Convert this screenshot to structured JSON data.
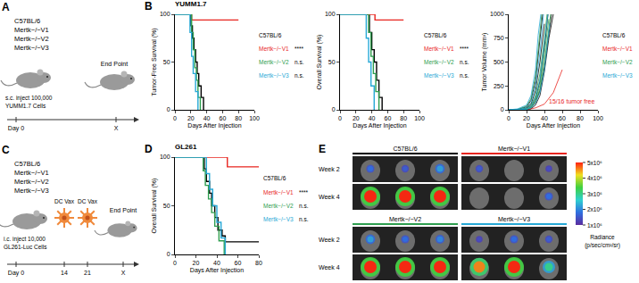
{
  "panel_labels": [
    "A",
    "B",
    "C",
    "D",
    "E"
  ],
  "schematic_A": {
    "genotypes": [
      "C57BL/6",
      "Mertk−/−V1",
      "Mertk−/−V2",
      "Mertk−/−V3"
    ],
    "injection": [
      "s.c. inject 100,000",
      "YUMM1.7 Cells"
    ],
    "end": "End Point",
    "timeline": [
      "Day 0",
      "X"
    ]
  },
  "schematic_C": {
    "genotypes": [
      "C57BL/6",
      "Mertk−/−V1",
      "Mertk−/−V2",
      "Mertk−/−V3"
    ],
    "injection": [
      "i.c. inject 10,000",
      "GL261-Luc Cells"
    ],
    "vaccines": [
      "DC Vax",
      "DC Vax"
    ],
    "end": "End Point",
    "timeline": [
      "Day 0",
      "14",
      "21",
      "X"
    ]
  },
  "chart_data": [
    {
      "type": "line",
      "title": "YUMM1.7",
      "xlabel": "Days After Injection",
      "ylabel": "Tumor-Free Survival (%)",
      "xlim": [
        0,
        100
      ],
      "xticks": [
        0,
        20,
        40,
        60,
        80,
        100
      ],
      "ylim": [
        0,
        100
      ],
      "yticks": [
        0,
        50,
        100
      ],
      "grid": false,
      "line_style": "step",
      "legend": "right",
      "series": [
        {
          "name": "C57BL/6",
          "color": "#000000",
          "x": [
            0,
            18,
            20,
            22,
            24,
            26,
            28,
            30,
            33,
            36
          ],
          "values": [
            100,
            100,
            88,
            75,
            63,
            50,
            38,
            25,
            13,
            0
          ]
        },
        {
          "name": "Mertk−/−V1",
          "color": "#e8251f",
          "x": [
            0,
            21,
            80
          ],
          "values": [
            100,
            94,
            94
          ]
        },
        {
          "name": "Mertk−/−V2",
          "color": "#2e9e4f",
          "x": [
            0,
            19,
            21,
            23,
            25,
            27,
            29,
            32
          ],
          "values": [
            100,
            100,
            81,
            63,
            44,
            31,
            13,
            0
          ]
        },
        {
          "name": "Mertk−/−V3",
          "color": "#27a9d6",
          "x": [
            0,
            17,
            19,
            21,
            23,
            26,
            29
          ],
          "values": [
            100,
            100,
            81,
            56,
            38,
            19,
            0
          ]
        }
      ],
      "annotations": [
        {
          "text": "****",
          "series": "Mertk−/−V1"
        },
        {
          "text": "n.s.",
          "series": "Mertk−/−V2"
        },
        {
          "text": "n.s.",
          "series": "Mertk−/−V3"
        }
      ]
    },
    {
      "type": "line",
      "xlabel": "Days After Injection",
      "ylabel": "Overall Survival (%)",
      "xlim": [
        0,
        100
      ],
      "xticks": [
        0,
        20,
        40,
        60,
        80,
        100
      ],
      "ylim": [
        0,
        100
      ],
      "yticks": [
        0,
        50,
        100
      ],
      "grid": false,
      "line_style": "step",
      "legend": "right",
      "series": [
        {
          "name": "C57BL/6",
          "color": "#000000",
          "x": [
            0,
            34,
            37,
            40,
            43,
            46,
            49,
            53
          ],
          "values": [
            100,
            100,
            81,
            63,
            50,
            31,
            13,
            0
          ]
        },
        {
          "name": "Mertk−/−V1",
          "color": "#e8251f",
          "x": [
            0,
            44,
            80
          ],
          "values": [
            100,
            94,
            94
          ]
        },
        {
          "name": "Mertk−/−V2",
          "color": "#2e9e4f",
          "x": [
            0,
            32,
            36,
            39,
            42,
            45,
            49
          ],
          "values": [
            100,
            100,
            81,
            56,
            38,
            19,
            0
          ]
        },
        {
          "name": "Mertk−/−V3",
          "color": "#27a9d6",
          "x": [
            0,
            30,
            33,
            36,
            39,
            43
          ],
          "values": [
            100,
            100,
            75,
            50,
            25,
            0
          ]
        }
      ],
      "annotations": [
        {
          "text": "****",
          "series": "Mertk−/−V1"
        },
        {
          "text": "n.s.",
          "series": "Mertk−/−V2"
        },
        {
          "text": "n.s.",
          "series": "Mertk−/−V3"
        }
      ]
    },
    {
      "type": "line",
      "xlabel": "Days After Injection",
      "ylabel": "Tumor Volume (mm³)",
      "xlim": [
        0,
        100
      ],
      "xticks": [
        0,
        20,
        40,
        60,
        80,
        100
      ],
      "ylim": [
        0,
        1000
      ],
      "yticks": [
        0,
        250,
        500,
        750,
        1000
      ],
      "grid": false,
      "line_style": "solid",
      "legend": "right",
      "series": [
        {
          "name": "C57BL/6",
          "color": "#000000",
          "curves": [
            {
              "x": [
                0,
                10,
                20,
                25,
                30,
                35,
                40,
                44
              ],
              "values": [
                0,
                0,
                10,
                40,
                120,
                300,
                650,
                1000
              ]
            },
            {
              "x": [
                0,
                10,
                20,
                25,
                30,
                35,
                40,
                45,
                48
              ],
              "values": [
                0,
                0,
                5,
                20,
                80,
                200,
                450,
                800,
                1000
              ]
            },
            {
              "x": [
                0,
                10,
                20,
                25,
                30,
                35,
                38
              ],
              "values": [
                0,
                5,
                30,
                100,
                300,
                700,
                1000
              ]
            },
            {
              "x": [
                0,
                10,
                20,
                25,
                30,
                35,
                40,
                45,
                50
              ],
              "values": [
                0,
                0,
                0,
                10,
                50,
                150,
                400,
                750,
                1000
              ]
            },
            {
              "x": [
                0,
                10,
                20,
                25,
                30,
                35,
                40
              ],
              "values": [
                0,
                0,
                20,
                60,
                200,
                500,
                900
              ]
            }
          ]
        },
        {
          "name": "Mertk−/−V1",
          "color": "#e8251f",
          "curves": [
            {
              "x": [
                0,
                10,
                20,
                30,
                40,
                50,
                60
              ],
              "values": [
                0,
                0,
                0,
                20,
                60,
                180,
                420
              ]
            }
          ]
        },
        {
          "name": "Mertk−/−V2",
          "color": "#2e9e4f",
          "curves": [
            {
              "x": [
                0,
                10,
                20,
                25,
                30,
                35,
                40,
                43
              ],
              "values": [
                0,
                0,
                15,
                50,
                150,
                380,
                750,
                1000
              ]
            },
            {
              "x": [
                0,
                10,
                20,
                25,
                30,
                35,
                40,
                45,
                47
              ],
              "values": [
                0,
                0,
                5,
                25,
                90,
                220,
                500,
                850,
                1000
              ]
            },
            {
              "x": [
                0,
                10,
                20,
                25,
                30,
                34,
                37
              ],
              "values": [
                0,
                5,
                40,
                120,
                350,
                750,
                1000
              ]
            },
            {
              "x": [
                0,
                10,
                20,
                25,
                30,
                35,
                40,
                45
              ],
              "values": [
                0,
                0,
                10,
                30,
                100,
                260,
                600,
                950
              ]
            }
          ]
        },
        {
          "name": "Mertk−/−V3",
          "color": "#27a9d6",
          "curves": [
            {
              "x": [
                0,
                10,
                20,
                25,
                30,
                35,
                39
              ],
              "values": [
                0,
                0,
                25,
                80,
                250,
                600,
                1000
              ]
            },
            {
              "x": [
                0,
                10,
                20,
                25,
                30,
                35,
                40,
                44
              ],
              "values": [
                0,
                0,
                10,
                40,
                130,
                320,
                700,
                1000
              ]
            },
            {
              "x": [
                0,
                10,
                20,
                25,
                30,
                33,
                36
              ],
              "values": [
                0,
                10,
                50,
                150,
                420,
                780,
                1000
              ]
            },
            {
              "x": [
                0,
                10,
                20,
                25,
                30,
                35,
                40,
                46
              ],
              "values": [
                0,
                0,
                5,
                20,
                70,
                180,
                420,
                900
              ]
            }
          ]
        }
      ],
      "annotations": [
        {
          "text": "15/16 tumor free",
          "color": "#e8251f"
        }
      ]
    },
    {
      "type": "line",
      "title": "GL261",
      "xlabel": "Days After Injection",
      "ylabel": "Overall Survival (%)",
      "xlim": [
        0,
        80
      ],
      "xticks": [
        0,
        20,
        40,
        60,
        80
      ],
      "ylim": [
        0,
        100
      ],
      "yticks": [
        0,
        50,
        100
      ],
      "grid": false,
      "line_style": "step",
      "legend": "right",
      "series": [
        {
          "name": "C57BL/6",
          "color": "#000000",
          "x": [
            0,
            25,
            28,
            30,
            33,
            35,
            38,
            41,
            45,
            48,
            80
          ],
          "values": [
            100,
            100,
            88,
            75,
            63,
            50,
            38,
            25,
            19,
            13,
            13
          ]
        },
        {
          "name": "Mertk−/−V1",
          "color": "#e8251f",
          "x": [
            0,
            50,
            80
          ],
          "values": [
            100,
            90,
            90
          ]
        },
        {
          "name": "Mertk−/−V2",
          "color": "#2e9e4f",
          "x": [
            0,
            24,
            27,
            29,
            32,
            35,
            38,
            42,
            47
          ],
          "values": [
            100,
            100,
            86,
            71,
            57,
            43,
            29,
            14,
            0
          ]
        },
        {
          "name": "Mertk−/−V3",
          "color": "#27a9d6",
          "x": [
            0,
            27,
            30,
            33,
            36,
            40,
            44,
            48
          ],
          "values": [
            100,
            100,
            83,
            67,
            50,
            33,
            17,
            0
          ]
        }
      ],
      "annotations": [
        {
          "text": "****",
          "series": "Mertk−/−V1"
        },
        {
          "text": "n.s.",
          "series": "Mertk−/−V2"
        },
        {
          "text": "n.s.",
          "series": "Mertk−/−V3"
        }
      ]
    }
  ],
  "imaging_E": {
    "columns": [
      "C57BL/6",
      "Mertk−/−V1",
      "Mertk−/−V2",
      "Mertk−/−V3"
    ],
    "colors": [
      "#000000",
      "#e8251f",
      "#2e9e4f",
      "#27a9d6"
    ],
    "rows": [
      "Week 2",
      "Week 4"
    ],
    "colorbar": {
      "title": [
        "Radiance",
        "(p/sec/cm²/sr)"
      ],
      "range": [
        1000000,
        5000000
      ],
      "ticks": [
        {
          "value": 1000000,
          "label": "1x10⁶"
        },
        {
          "value": 2000000,
          "label": "2x10⁶"
        },
        {
          "value": 3000000,
          "label": "3x10⁶"
        },
        {
          "value": 4000000,
          "label": "4x10⁶"
        },
        {
          "value": 5000000,
          "label": "5x10⁶"
        }
      ]
    }
  }
}
